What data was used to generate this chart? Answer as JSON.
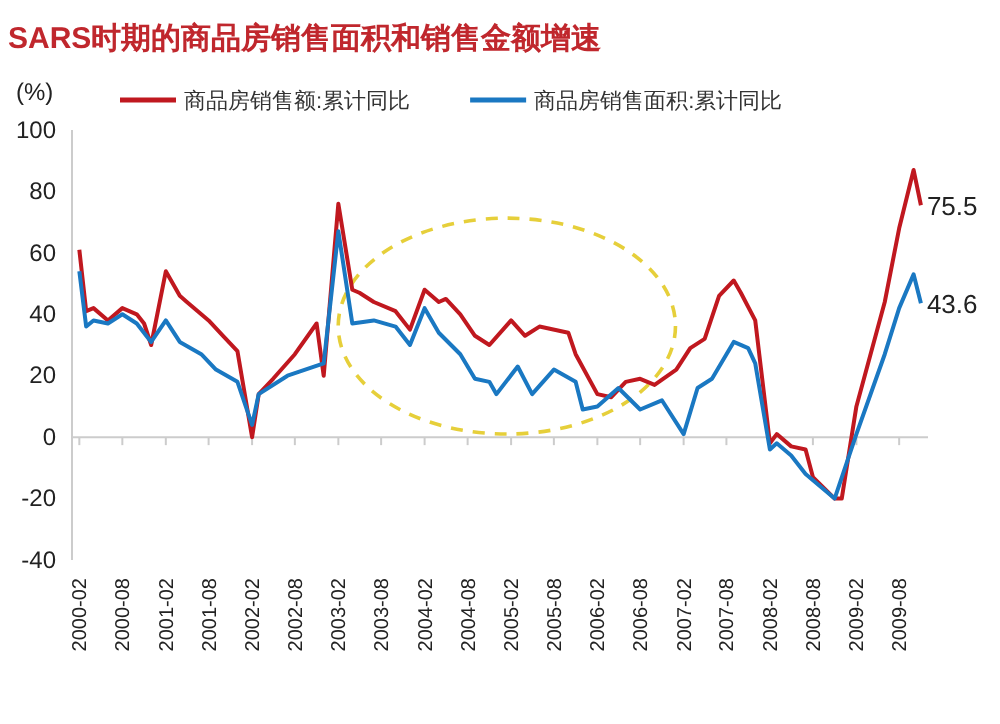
{
  "chart_data": {
    "type": "line",
    "title": "SARS时期的商品房销售面积和销售金额增速",
    "ylabel": "(%)",
    "series": [
      {
        "name": "商品房销售额:累计同比",
        "color": "#c0181f",
        "x": [
          "2000-02",
          "2000-03",
          "2000-04",
          "2000-06",
          "2000-08",
          "2000-10",
          "2000-11",
          "2000-12",
          "2001-02",
          "2001-04",
          "2001-05",
          "2001-07",
          "2001-08",
          "2001-10",
          "2001-12",
          "2002-02",
          "2002-03",
          "2002-05",
          "2002-08",
          "2002-11",
          "2002-12",
          "2003-02",
          "2003-04",
          "2003-05",
          "2003-07",
          "2003-10",
          "2003-12",
          "2004-02",
          "2004-04",
          "2004-05",
          "2004-07",
          "2004-09",
          "2004-11",
          "2005-02",
          "2005-04",
          "2005-06",
          "2005-10",
          "2005-11",
          "2006-02",
          "2006-04",
          "2006-06",
          "2006-08",
          "2006-10",
          "2007-01",
          "2007-03",
          "2007-05",
          "2007-07",
          "2007-09",
          "2007-10",
          "2007-12",
          "2008-02",
          "2008-03",
          "2008-05",
          "2008-07",
          "2008-08",
          "2008-11",
          "2008-12",
          "2009-02",
          "2009-06",
          "2009-08",
          "2009-10",
          "2009-11"
        ],
        "values": [
          61,
          41,
          42,
          38,
          42,
          40,
          37,
          30,
          54,
          46,
          44,
          40,
          38,
          33,
          28,
          0,
          14,
          19,
          27,
          37,
          20,
          76,
          48,
          47,
          44,
          41,
          35,
          48,
          44,
          45,
          40,
          33,
          30,
          38,
          33,
          36,
          34,
          27,
          14,
          13,
          18,
          19,
          17,
          22,
          29,
          32,
          46,
          51,
          47,
          38,
          -2,
          1,
          -3,
          -4,
          -13,
          -20,
          -20,
          10,
          44,
          68,
          87,
          75.5
        ]
      },
      {
        "name": "商品房销售面积:累计同比",
        "color": "#1a78c2",
        "x": [
          "2000-02",
          "2000-03",
          "2000-04",
          "2000-06",
          "2000-08",
          "2000-10",
          "2000-12",
          "2001-02",
          "2001-04",
          "2001-07",
          "2001-09",
          "2001-12",
          "2002-02",
          "2002-03",
          "2002-07",
          "2002-12",
          "2003-02",
          "2003-04",
          "2003-07",
          "2003-10",
          "2003-12",
          "2004-02",
          "2004-04",
          "2004-07",
          "2004-09",
          "2004-11",
          "2004-12",
          "2005-03",
          "2005-05",
          "2005-08",
          "2005-11",
          "2005-12",
          "2006-02",
          "2006-05",
          "2006-08",
          "2006-11",
          "2007-02",
          "2007-04",
          "2007-06",
          "2007-09",
          "2007-11",
          "2007-12",
          "2008-02",
          "2008-03",
          "2008-05",
          "2008-07",
          "2008-11",
          "2009-02",
          "2009-06",
          "2009-08",
          "2009-10",
          "2009-11"
        ],
        "values": [
          54,
          36,
          38,
          37,
          40,
          37,
          31,
          38,
          31,
          27,
          22,
          18,
          4,
          14,
          20,
          24,
          67,
          37,
          38,
          36,
          30,
          42,
          34,
          27,
          19,
          18,
          14,
          23,
          14,
          22,
          18,
          9,
          10,
          16,
          9,
          12,
          1,
          16,
          19,
          31,
          29,
          24,
          -4,
          -2,
          -6,
          -12,
          -20,
          1,
          27,
          42,
          53,
          43.6
        ]
      }
    ],
    "annotations": [
      {
        "text": "75.5",
        "x": "2009-11",
        "y": 75.5
      },
      {
        "text": "43.6",
        "x": "2009-11",
        "y": 43.6
      }
    ],
    "xlim": [
      "2000-01",
      "2009-12"
    ],
    "xticks": [
      "2000-02",
      "2000-08",
      "2001-02",
      "2001-08",
      "2002-02",
      "2002-08",
      "2003-02",
      "2003-08",
      "2004-02",
      "2004-08",
      "2005-02",
      "2005-08",
      "2006-02",
      "2006-08",
      "2007-02",
      "2007-08",
      "2008-02",
      "2008-08",
      "2009-02",
      "2009-08"
    ],
    "ylim": [
      -40,
      100
    ],
    "yticks": [
      -40,
      -20,
      0,
      20,
      40,
      60,
      80,
      100
    ],
    "legend": "top",
    "marker": "none",
    "line_style": "solid"
  }
}
